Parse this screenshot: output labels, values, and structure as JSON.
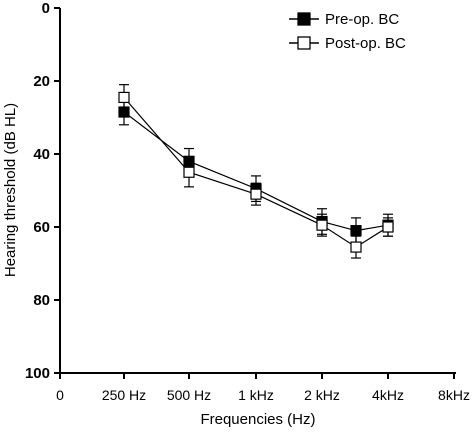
{
  "chart_data": {
    "type": "line",
    "xlabel": "Frequencies (Hz)",
    "ylabel": "Hearing threshold (dB HL)",
    "x_ticks": [
      "0",
      "250 Hz",
      "500 Hz",
      "1 kHz",
      "2 kHz",
      "4kHz",
      "8kHz"
    ],
    "y_ticks": [
      "0",
      "20",
      "40",
      "60",
      "80",
      "100"
    ],
    "ylim": [
      0,
      100
    ],
    "y_inverted": true,
    "grid": false,
    "legend_position": "top-right",
    "series": [
      {
        "name": "Pre-op. BC",
        "marker": "filled-square",
        "color": "#000000",
        "points": [
          {
            "x": "250 Hz",
            "y": 28.5,
            "err": 3.5
          },
          {
            "x": "500 Hz",
            "y": 42,
            "err": 3.5
          },
          {
            "x": "1 kHz",
            "y": 49.5,
            "err": 3.5
          },
          {
            "x": "2 kHz",
            "y": 58.5,
            "err": 3.5
          },
          {
            "x": "3 kHz",
            "y": 61,
            "err": 3.5
          },
          {
            "x": "4kHz",
            "y": 59.5,
            "err": 3
          }
        ]
      },
      {
        "name": "Post-op. BC",
        "marker": "open-square",
        "color": "#000000",
        "points": [
          {
            "x": "250 Hz",
            "y": 24.5,
            "err": 3.5
          },
          {
            "x": "500 Hz",
            "y": 45,
            "err": 4
          },
          {
            "x": "1 kHz",
            "y": 51,
            "err": 3
          },
          {
            "x": "2 kHz",
            "y": 59.5,
            "err": 3
          },
          {
            "x": "3 kHz",
            "y": 65.5,
            "err": 3
          },
          {
            "x": "4kHz",
            "y": 60,
            "err": 2.5
          }
        ]
      }
    ]
  }
}
